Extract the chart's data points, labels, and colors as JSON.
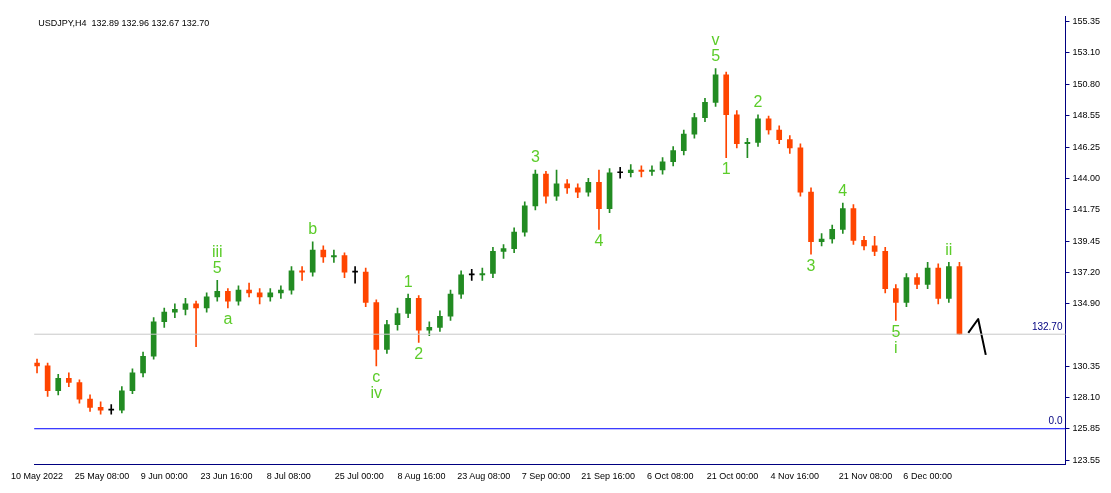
{
  "chart_data": {
    "type": "candlestick",
    "title": "USDJPY,H4  132.89 132.96 132.67 132.70",
    "x": [
      "2022-05-10T00:00",
      "2022-05-12T12:00",
      "2022-05-15T00:00",
      "2022-05-17T12:00",
      "2022-05-20T00:00",
      "2022-05-22T12:00",
      "2022-05-25T00:00",
      "2022-05-27T12:00",
      "2022-05-30T00:00",
      "2022-06-01T12:00",
      "2022-06-04T00:00",
      "2022-06-06T12:00",
      "2022-06-09T00:00",
      "2022-06-11T12:00",
      "2022-06-14T00:00",
      "2022-06-16T12:00",
      "2022-06-19T00:00",
      "2022-06-21T12:00",
      "2022-06-24T00:00",
      "2022-06-26T12:00",
      "2022-06-29T00:00",
      "2022-07-01T12:00",
      "2022-07-04T00:00",
      "2022-07-06T12:00",
      "2022-07-09T00:00",
      "2022-07-11T12:00",
      "2022-07-14T00:00",
      "2022-07-16T12:00",
      "2022-07-19T00:00",
      "2022-07-21T12:00",
      "2022-07-24T00:00",
      "2022-07-26T12:00",
      "2022-07-29T00:00",
      "2022-07-31T12:00",
      "2022-08-03T00:00",
      "2022-08-05T12:00",
      "2022-08-08T00:00",
      "2022-08-10T12:00",
      "2022-08-13T00:00",
      "2022-08-15T12:00",
      "2022-08-18T00:00",
      "2022-08-20T12:00",
      "2022-08-23T00:00",
      "2022-08-25T12:00",
      "2022-08-28T00:00",
      "2022-08-30T12:00",
      "2022-09-02T00:00",
      "2022-09-04T12:00",
      "2022-09-07T00:00",
      "2022-09-09T12:00",
      "2022-09-12T00:00",
      "2022-09-14T12:00",
      "2022-09-17T00:00",
      "2022-09-19T12:00",
      "2022-09-22T00:00",
      "2022-09-24T12:00",
      "2022-09-27T00:00",
      "2022-09-29T12:00",
      "2022-10-02T00:00",
      "2022-10-04T12:00",
      "2022-10-07T00:00",
      "2022-10-09T12:00",
      "2022-10-12T00:00",
      "2022-10-14T12:00",
      "2022-10-17T00:00",
      "2022-10-19T12:00",
      "2022-10-22T00:00",
      "2022-10-24T12:00",
      "2022-10-27T00:00",
      "2022-10-29T12:00",
      "2022-11-01T00:00",
      "2022-11-03T12:00",
      "2022-11-06T00:00",
      "2022-11-08T12:00",
      "2022-11-11T00:00",
      "2022-11-13T12:00",
      "2022-11-16T00:00",
      "2022-11-18T12:00",
      "2022-11-21T00:00",
      "2022-11-23T12:00",
      "2022-11-26T00:00",
      "2022-11-28T12:00",
      "2022-12-01T00:00",
      "2022-12-03T12:00",
      "2022-12-06T00:00",
      "2022-12-08T12:00",
      "2022-12-11T00:00",
      "2022-12-13T12:00"
    ],
    "ohlc": [
      [
        130.6,
        130.9,
        129.9,
        130.4
      ],
      [
        130.4,
        130.6,
        128.2,
        128.6
      ],
      [
        128.6,
        129.8,
        128.3,
        129.5
      ],
      [
        129.5,
        129.9,
        128.9,
        129.2
      ],
      [
        129.2,
        129.4,
        127.7,
        128.0
      ],
      [
        128.0,
        128.3,
        127.1,
        127.4
      ],
      [
        127.4,
        127.8,
        126.9,
        127.2
      ],
      [
        127.2,
        127.6,
        126.9,
        127.2
      ],
      [
        127.2,
        128.9,
        127.0,
        128.6
      ],
      [
        128.6,
        130.2,
        128.4,
        129.9
      ],
      [
        129.9,
        131.4,
        129.6,
        131.1
      ],
      [
        131.1,
        133.9,
        130.9,
        133.6
      ],
      [
        133.6,
        134.6,
        133.2,
        134.3
      ],
      [
        134.3,
        134.9,
        133.9,
        134.5
      ],
      [
        134.5,
        135.3,
        134.1,
        134.9
      ],
      [
        134.9,
        135.1,
        131.8,
        134.6
      ],
      [
        134.6,
        135.7,
        134.3,
        135.4
      ],
      [
        135.4,
        136.6,
        135.1,
        135.8
      ],
      [
        135.8,
        136.0,
        134.6,
        135.1
      ],
      [
        135.1,
        136.2,
        134.8,
        135.9
      ],
      [
        135.9,
        136.4,
        135.4,
        135.7
      ],
      [
        135.7,
        136.0,
        134.9,
        135.4
      ],
      [
        135.4,
        136.0,
        135.1,
        135.7
      ],
      [
        135.7,
        136.2,
        135.3,
        135.9
      ],
      [
        135.9,
        137.6,
        135.6,
        137.3
      ],
      [
        137.3,
        137.6,
        136.6,
        137.2
      ],
      [
        137.2,
        139.4,
        136.9,
        138.8
      ],
      [
        138.8,
        139.1,
        137.9,
        138.3
      ],
      [
        138.3,
        138.8,
        137.9,
        138.4
      ],
      [
        138.4,
        138.6,
        136.8,
        137.2
      ],
      [
        137.2,
        137.6,
        136.4,
        137.2
      ],
      [
        137.2,
        137.5,
        134.7,
        135.0
      ],
      [
        135.0,
        135.2,
        130.4,
        131.6
      ],
      [
        131.6,
        133.7,
        131.3,
        133.4
      ],
      [
        133.4,
        134.6,
        133.0,
        134.2
      ],
      [
        134.2,
        135.6,
        133.9,
        135.3
      ],
      [
        135.3,
        135.5,
        132.1,
        133.0
      ],
      [
        133.0,
        133.6,
        132.6,
        133.2
      ],
      [
        133.2,
        134.4,
        132.9,
        134.0
      ],
      [
        134.0,
        135.9,
        133.7,
        135.6
      ],
      [
        135.6,
        137.3,
        135.3,
        137.0
      ],
      [
        137.0,
        137.4,
        136.6,
        137.0
      ],
      [
        137.0,
        137.5,
        136.6,
        137.1
      ],
      [
        137.1,
        139.0,
        136.8,
        138.7
      ],
      [
        138.7,
        139.2,
        138.2,
        138.9
      ],
      [
        138.9,
        140.4,
        138.6,
        140.1
      ],
      [
        140.1,
        142.3,
        139.8,
        142.0
      ],
      [
        142.0,
        144.6,
        141.7,
        144.3
      ],
      [
        144.3,
        144.5,
        142.2,
        142.7
      ],
      [
        142.7,
        144.6,
        142.4,
        143.6
      ],
      [
        143.6,
        143.9,
        142.9,
        143.3
      ],
      [
        143.3,
        143.6,
        142.6,
        143.0
      ],
      [
        143.0,
        144.0,
        142.7,
        143.7
      ],
      [
        143.7,
        144.6,
        140.3,
        141.8
      ],
      [
        141.8,
        144.7,
        141.5,
        144.4
      ],
      [
        144.4,
        144.8,
        144.0,
        144.4
      ],
      [
        144.4,
        145.0,
        144.1,
        144.6
      ],
      [
        144.6,
        144.9,
        144.1,
        144.5
      ],
      [
        144.5,
        144.9,
        144.2,
        144.6
      ],
      [
        144.6,
        145.5,
        144.3,
        145.2
      ],
      [
        145.2,
        146.3,
        144.9,
        146.0
      ],
      [
        146.0,
        147.5,
        145.7,
        147.2
      ],
      [
        147.2,
        148.7,
        146.9,
        148.4
      ],
      [
        148.4,
        149.8,
        148.1,
        149.5
      ],
      [
        149.5,
        151.95,
        149.2,
        151.5
      ],
      [
        151.5,
        151.7,
        145.5,
        148.6
      ],
      [
        148.6,
        148.9,
        146.2,
        146.5
      ],
      [
        146.5,
        146.9,
        145.5,
        146.6
      ],
      [
        146.6,
        148.6,
        146.3,
        148.3
      ],
      [
        148.3,
        148.5,
        147.2,
        147.5
      ],
      [
        147.5,
        147.8,
        146.5,
        146.8
      ],
      [
        146.8,
        147.1,
        145.8,
        146.2
      ],
      [
        146.2,
        146.5,
        142.7,
        143.0
      ],
      [
        143.0,
        143.3,
        138.5,
        139.4
      ],
      [
        139.4,
        140.0,
        139.1,
        139.6
      ],
      [
        139.6,
        140.6,
        139.3,
        140.3
      ],
      [
        140.3,
        142.2,
        140.0,
        141.8
      ],
      [
        141.8,
        142.1,
        139.2,
        139.5
      ],
      [
        139.5,
        139.8,
        138.8,
        139.1
      ],
      [
        139.1,
        139.8,
        138.4,
        138.7
      ],
      [
        138.7,
        139.0,
        135.7,
        136.0
      ],
      [
        136.0,
        136.3,
        133.7,
        135.0
      ],
      [
        135.0,
        137.1,
        134.7,
        136.8
      ],
      [
        136.8,
        137.1,
        136.0,
        136.3
      ],
      [
        136.3,
        137.9,
        136.0,
        137.5
      ],
      [
        137.5,
        137.8,
        134.9,
        135.3
      ],
      [
        135.3,
        137.9,
        135.0,
        137.6
      ],
      [
        137.6,
        137.9,
        132.67,
        132.7
      ]
    ],
    "colors": [
      "#ff4500",
      "#ff4500",
      "#228b22",
      "#ff4500",
      "#ff4500",
      "#ff4500",
      "#ff4500",
      "#000000",
      "#228b22",
      "#228b22",
      "#228b22",
      "#228b22",
      "#228b22",
      "#228b22",
      "#228b22",
      "#ff4500",
      "#228b22",
      "#228b22",
      "#ff4500",
      "#228b22",
      "#ff4500",
      "#ff4500",
      "#228b22",
      "#228b22",
      "#228b22",
      "#ff4500",
      "#228b22",
      "#ff4500",
      "#228b22",
      "#ff4500",
      "#000000",
      "#ff4500",
      "#ff4500",
      "#228b22",
      "#228b22",
      "#228b22",
      "#ff4500",
      "#228b22",
      "#228b22",
      "#228b22",
      "#228b22",
      "#000000",
      "#228b22",
      "#228b22",
      "#228b22",
      "#228b22",
      "#228b22",
      "#228b22",
      "#ff4500",
      "#228b22",
      "#ff4500",
      "#ff4500",
      "#228b22",
      "#ff4500",
      "#228b22",
      "#000000",
      "#228b22",
      "#ff4500",
      "#228b22",
      "#228b22",
      "#228b22",
      "#228b22",
      "#228b22",
      "#228b22",
      "#228b22",
      "#ff4500",
      "#ff4500",
      "#228b22",
      "#228b22",
      "#ff4500",
      "#ff4500",
      "#ff4500",
      "#ff4500",
      "#ff4500",
      "#228b22",
      "#228b22",
      "#228b22",
      "#ff4500",
      "#ff4500",
      "#ff4500",
      "#ff4500",
      "#ff4500",
      "#228b22",
      "#ff4500",
      "#228b22",
      "#ff4500",
      "#228b22",
      "#ff4500"
    ],
    "series": [
      {
        "type": "line",
        "color": "#000000",
        "x": [
          "2022-12-15T14:00",
          "2022-12-17T22:00",
          "2022-12-19T17:00"
        ],
        "values": [
          132.8,
          133.8,
          131.2
        ]
      }
    ],
    "xlim": [
      "2022-05-09T08:00",
      "2023-01-07T12:00"
    ],
    "xticks": [
      {
        "value": "2022-05-10T00:00",
        "label": "10 May 2022"
      },
      {
        "value": "2022-05-25T08:00",
        "label": "25 May 08:00"
      },
      {
        "value": "2022-06-09T00:00",
        "label": "9 Jun 00:00"
      },
      {
        "value": "2022-06-23T16:00",
        "label": "23 Jun 16:00"
      },
      {
        "value": "2022-07-08T08:00",
        "label": "8 Jul 08:00"
      },
      {
        "value": "2022-07-25T00:00",
        "label": "25 Jul 00:00"
      },
      {
        "value": "2022-08-08T16:00",
        "label": "8 Aug 16:00"
      },
      {
        "value": "2022-08-23T08:00",
        "label": "23 Aug 08:00"
      },
      {
        "value": "2022-09-07T00:00",
        "label": "7 Sep 00:00"
      },
      {
        "value": "2022-09-21T16:00",
        "label": "21 Sep 16:00"
      },
      {
        "value": "2022-10-06T08:00",
        "label": "6 Oct 08:00"
      },
      {
        "value": "2022-10-21T00:00",
        "label": "21 Oct 00:00"
      },
      {
        "value": "2022-11-04T16:00",
        "label": "4 Nov 16:00"
      },
      {
        "value": "2022-11-21T08:00",
        "label": "21 Nov 08:00"
      },
      {
        "value": "2022-12-06T00:00",
        "label": "6 Dec 00:00"
      }
    ],
    "ylim": [
      123.28,
      155.73
    ],
    "yticks": [
      123.55,
      125.85,
      {
        "value": 128.1,
        "label": "128.10"
      },
      130.35,
      {
        "value": 134.9,
        "label": "134.90"
      },
      {
        "value": 137.2,
        "label": "137.20"
      },
      139.45,
      141.75,
      {
        "value": 144.0,
        "label": "144.00"
      },
      146.25,
      148.55,
      {
        "value": 150.8,
        "label": "150.80"
      },
      {
        "value": 153.1,
        "label": "153.10"
      },
      155.35
    ],
    "ref_lines": [
      {
        "axis": "y",
        "value": 132.7,
        "label": "132.70",
        "color": "#c8c8c8"
      },
      {
        "axis": "y",
        "value": 125.85,
        "color": "#0000ff"
      }
    ],
    "annotations": [
      "0.0",
      {
        "text": "iii",
        "x": "2022-06-21T12:00",
        "y": 136.6
      },
      {
        "text": "5",
        "x": "2022-06-21T12:00",
        "y": 136.6
      },
      {
        "text": "a",
        "x": "2022-06-24T00:00",
        "y": 134.6
      },
      {
        "text": "b",
        "x": "2022-07-14T00:00",
        "y": 139.4
      },
      {
        "text": "c",
        "x": "2022-07-29T00:00",
        "y": 130.4
      },
      {
        "text": "iv",
        "x": "2022-07-29T00:00",
        "y": 130.4
      },
      {
        "text": "1",
        "x": "2022-08-05T12:00",
        "y": 135.6
      },
      {
        "text": "2",
        "x": "2022-08-08T00:00",
        "y": 132.1
      },
      {
        "text": "3",
        "x": "2022-09-04T12:00",
        "y": 144.6
      },
      {
        "text": "4",
        "x": "2022-09-19T12:00",
        "y": 140.3
      },
      {
        "text": "v",
        "x": "2022-10-17T00:00",
        "y": 151.95
      },
      {
        "text": "5",
        "x": "2022-10-17T00:00",
        "y": 151.95
      },
      {
        "text": "1",
        "x": "2022-10-19T12:00",
        "y": 145.5
      },
      {
        "text": "2",
        "x": "2022-10-27T00:00",
        "y": 148.6
      },
      {
        "text": "3",
        "x": "2022-11-08T12:00",
        "y": 138.5
      },
      {
        "text": "4",
        "x": "2022-11-16T00:00",
        "y": 142.2
      },
      {
        "text": "5",
        "x": "2022-11-28T12:00",
        "y": 133.7
      },
      {
        "text": "i",
        "x": "2022-11-28T12:00",
        "y": 133.7
      },
      {
        "text": "ii",
        "x": "2022-12-11T00:00",
        "y": 137.9
      }
    ]
  }
}
